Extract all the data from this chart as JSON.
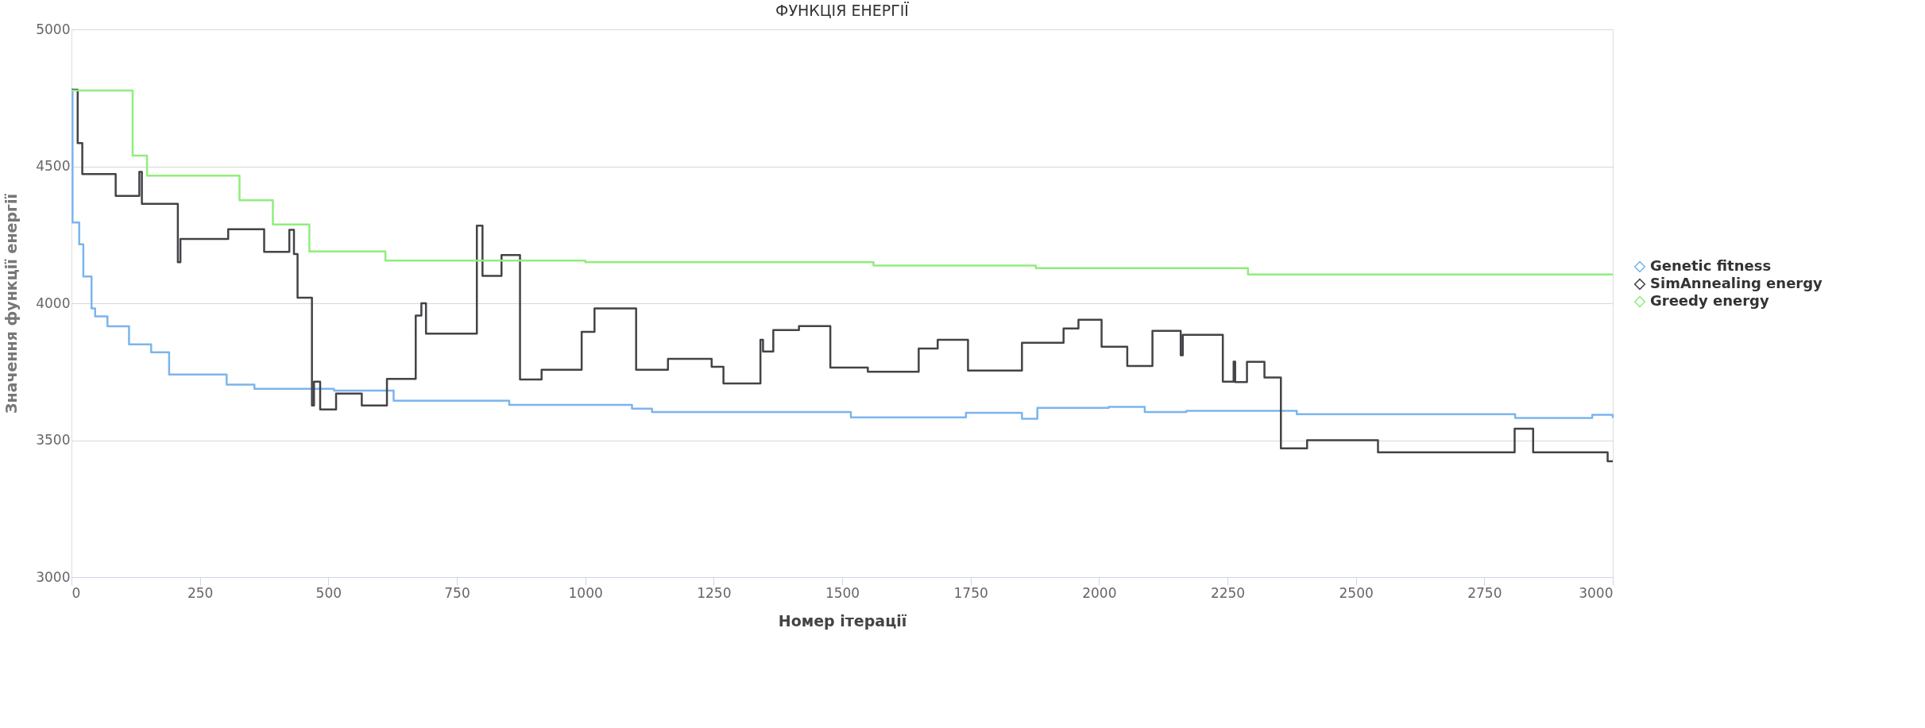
{
  "chart_data": {
    "type": "step",
    "title": "ФУНКЦІЯ ЕНЕРГІЇ",
    "xlabel": "Номер ітерації",
    "ylabel": "Значення функції енергії",
    "xlim": [
      0,
      3000
    ],
    "xticks": [
      0,
      250,
      500,
      750,
      1000,
      1250,
      1500,
      1750,
      2000,
      2250,
      2500,
      2750,
      3000
    ],
    "ylim": [
      3000,
      5000
    ],
    "yticks": [
      3000,
      3500,
      4000,
      4500,
      5000
    ],
    "grid": "y",
    "legend": "right",
    "marker": "none",
    "line_style": "solid",
    "series": [
      {
        "name": "Genetic fitness",
        "color": "#7cb5ec",
        "x": [
          0,
          2,
          15,
          23,
          39,
          46,
          70,
          112,
          155,
          190,
          302,
          356,
          511,
          627,
          852,
          1091,
          1130,
          1517,
          1741,
          1850,
          1880,
          2019,
          2089,
          2170,
          2385,
          2810,
          2960,
          3000
        ],
        "values": [
          4780,
          4295,
          4215,
          4098,
          3981,
          3952,
          3916,
          3850,
          3821,
          3740,
          3703,
          3688,
          3681,
          3644,
          3629,
          3615,
          3603,
          3583,
          3600,
          3578,
          3618,
          3622,
          3603,
          3607,
          3595,
          3581,
          3593,
          3581
        ]
      },
      {
        "name": "SimAnnealing energy",
        "color": "#434348",
        "x": [
          0,
          12,
          21,
          86,
          132,
          137,
          207,
          212,
          305,
          375,
          424,
          433,
          440,
          468,
          472,
          484,
          515,
          565,
          614,
          670,
          681,
          690,
          789,
          800,
          837,
          873,
          915,
          993,
          1018,
          1099,
          1161,
          1246,
          1269,
          1341,
          1346,
          1366,
          1416,
          1477,
          1550,
          1649,
          1686,
          1745,
          1850,
          1931,
          1960,
          2005,
          2055,
          2104,
          2159,
          2163,
          2241,
          2262,
          2265,
          2288,
          2322,
          2354,
          2405,
          2543,
          2809,
          2845,
          2990,
          3000
        ],
        "values": [
          4780,
          4585,
          4472,
          4392,
          4480,
          4363,
          4150,
          4235,
          4270,
          4188,
          4268,
          4180,
          4020,
          3627,
          3714,
          3612,
          3670,
          3627,
          3724,
          3955,
          4000,
          3889,
          4283,
          4100,
          4176,
          3722,
          3757,
          3896,
          3981,
          3757,
          3797,
          3768,
          3707,
          3867,
          3824,
          3902,
          3917,
          3765,
          3750,
          3835,
          3867,
          3754,
          3856,
          3908,
          3940,
          3841,
          3771,
          3899,
          3810,
          3885,
          3714,
          3787,
          3712,
          3786,
          3729,
          3470,
          3500,
          3456,
          3542,
          3456,
          3423,
          3423
        ]
      },
      {
        "name": "Greedy energy",
        "color": "#90ed7d",
        "x": [
          0,
          119,
          147,
          327,
          392,
          463,
          611,
          1000,
          1561,
          1877,
          2290,
          3000
        ],
        "values": [
          4777,
          4539,
          4466,
          4376,
          4288,
          4189,
          4156,
          4150,
          4138,
          4128,
          4105,
          4105
        ]
      }
    ]
  }
}
